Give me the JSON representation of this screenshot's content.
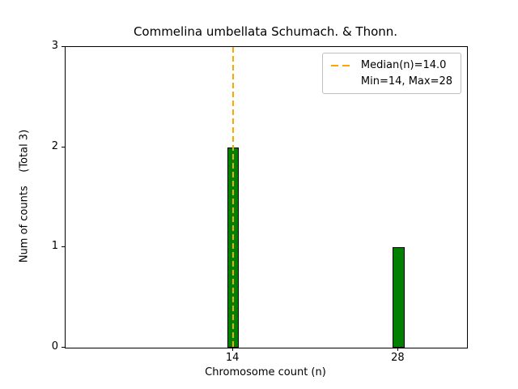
{
  "chart_data": {
    "type": "bar",
    "title": "Commelina umbellata Schumach. & Thonn.",
    "xlabel": "Chromosome count (n)",
    "ylabel": "Num of counts    (Total 3)",
    "categories": [
      14,
      28
    ],
    "values": [
      2,
      1
    ],
    "total": 3,
    "xlim": [
      -0.2,
      33.8
    ],
    "ylim": [
      0,
      3
    ],
    "yticks": [
      0,
      1,
      2,
      3
    ],
    "bar_width": 1,
    "bar_color": "#008000",
    "bar_edge_color": "#000000",
    "median_line": {
      "x": 14,
      "color": "#FFA500",
      "style": "dashed"
    },
    "legend": [
      "Median(n)=14.0",
      "Min=14, Max=28"
    ],
    "legend_position": "upper right",
    "grid": false
  }
}
